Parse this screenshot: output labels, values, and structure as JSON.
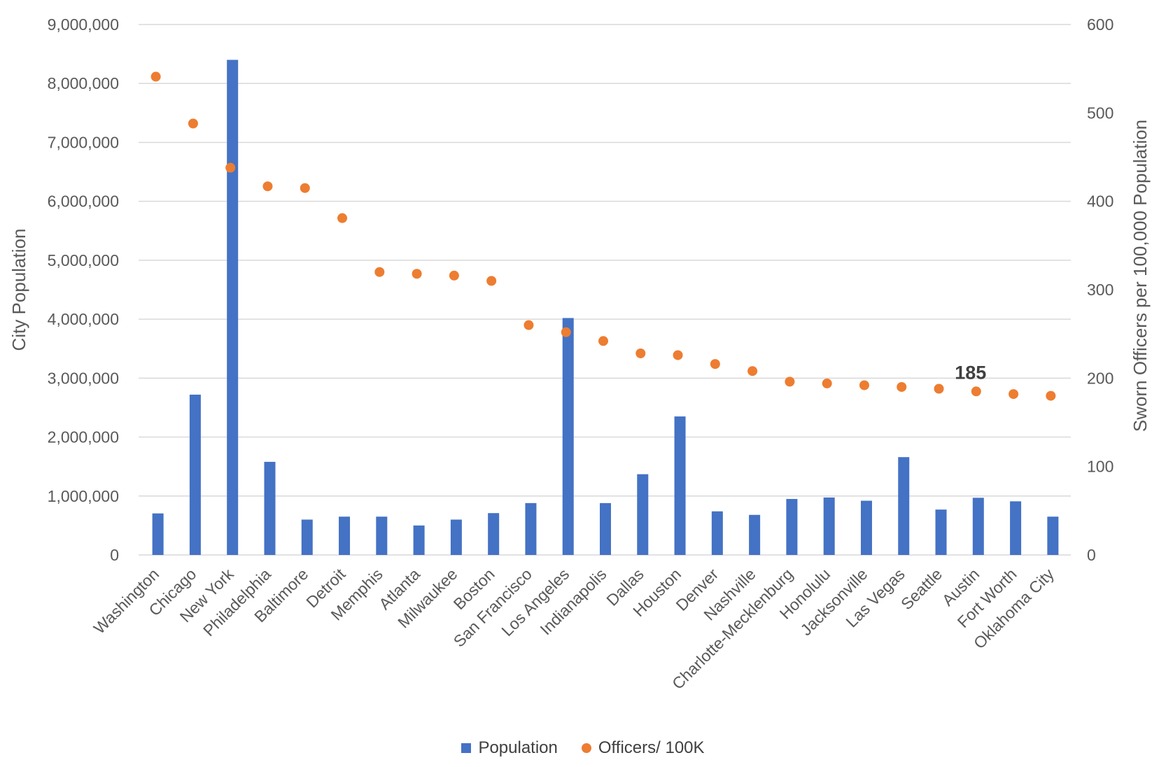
{
  "chart_data": {
    "type": "bar+scatter",
    "categories": [
      "Washington",
      "Chicago",
      "New York",
      "Philadelphia",
      "Baltimore",
      "Detroit",
      "Memphis",
      "Atlanta",
      "Milwaukee",
      "Boston",
      "San Francisco",
      "Los Angeles",
      "Indianapolis",
      "Dallas",
      "Houston",
      "Denver",
      "Nashville",
      "Charlotte-Mecklenburg",
      "Honolulu",
      "Jacksonville",
      "Las Vegas",
      "Seattle",
      "Austin",
      "Fort Worth",
      "Oklahoma City"
    ],
    "series": [
      {
        "name": "Population",
        "kind": "bar",
        "axis": "left",
        "color": "#4472C4",
        "values": [
          705000,
          2720000,
          8400000,
          1580000,
          600000,
          650000,
          650000,
          500000,
          600000,
          710000,
          880000,
          4020000,
          880000,
          1370000,
          2350000,
          740000,
          680000,
          950000,
          975000,
          920000,
          1660000,
          770000,
          970000,
          910000,
          650000
        ]
      },
      {
        "name": "Officers/ 100K",
        "kind": "scatter",
        "axis": "right",
        "color": "#ED7D31",
        "values": [
          541,
          488,
          438,
          417,
          415,
          381,
          320,
          318,
          316,
          310,
          260,
          252,
          242,
          228,
          226,
          216,
          208,
          196,
          194,
          192,
          190,
          188,
          185,
          182,
          180
        ]
      }
    ],
    "yleft": {
      "label": "City Population",
      "ylim": [
        0,
        9000000
      ],
      "ticks": [
        "0",
        "1,000,000",
        "2,000,000",
        "3,000,000",
        "4,000,000",
        "5,000,000",
        "6,000,000",
        "7,000,000",
        "8,000,000",
        "9,000,000"
      ]
    },
    "yright": {
      "label": "Sworn Officers per 100,000 Population",
      "ylim": [
        0,
        600
      ],
      "ticks": [
        "0",
        "100",
        "200",
        "300",
        "400",
        "500",
        "600"
      ]
    },
    "annotation": {
      "text": "185",
      "category": "Austin"
    },
    "grid": true,
    "legend_position": "bottom"
  },
  "legend": {
    "population": "Population",
    "officers": "Officers/ 100K"
  }
}
